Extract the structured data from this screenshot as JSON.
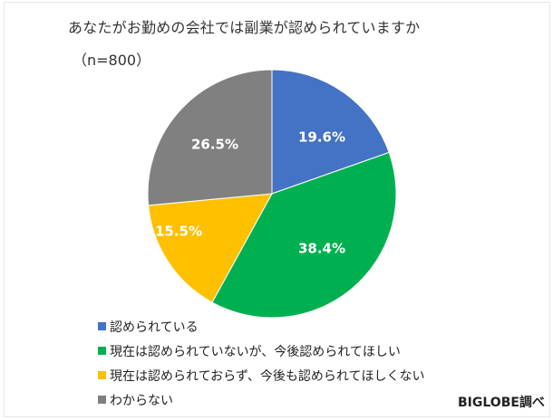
{
  "chart_data": {
    "type": "pie",
    "title": "あなたがお勤めの会社では副業が認められていますか",
    "subtitle": "（n=800）",
    "categories": [
      "認められている",
      "現在は認められていないが、今後認められてほしい",
      "現在は認められておらず、今後も認められてほしくない",
      "わからない"
    ],
    "values": [
      19.6,
      38.4,
      15.5,
      26.5
    ],
    "labels": [
      "19.6%",
      "38.4%",
      "15.5%",
      "26.5%"
    ],
    "colors": [
      "#4472C4",
      "#00B050",
      "#FFC000",
      "#808080"
    ],
    "unit": "%",
    "start_angle": "12 o'clock, clockwise",
    "legend_position": "bottom-left",
    "source": "BIGLOBE調べ"
  },
  "header": {
    "title": "あなたがお勤めの会社では副業が認められていますか",
    "subtitle": "（n=800）"
  },
  "legend": {
    "items": [
      {
        "label": "認められている",
        "color": "#4472C4"
      },
      {
        "label": "現在は認められていないが、今後認められてほしい",
        "color": "#00B050"
      },
      {
        "label": "現在は認められておらず、今後も認められてほしくない",
        "color": "#FFC000"
      },
      {
        "label": "わからない",
        "color": "#808080"
      }
    ]
  },
  "footer": {
    "source": "BIGLOBE調べ"
  }
}
